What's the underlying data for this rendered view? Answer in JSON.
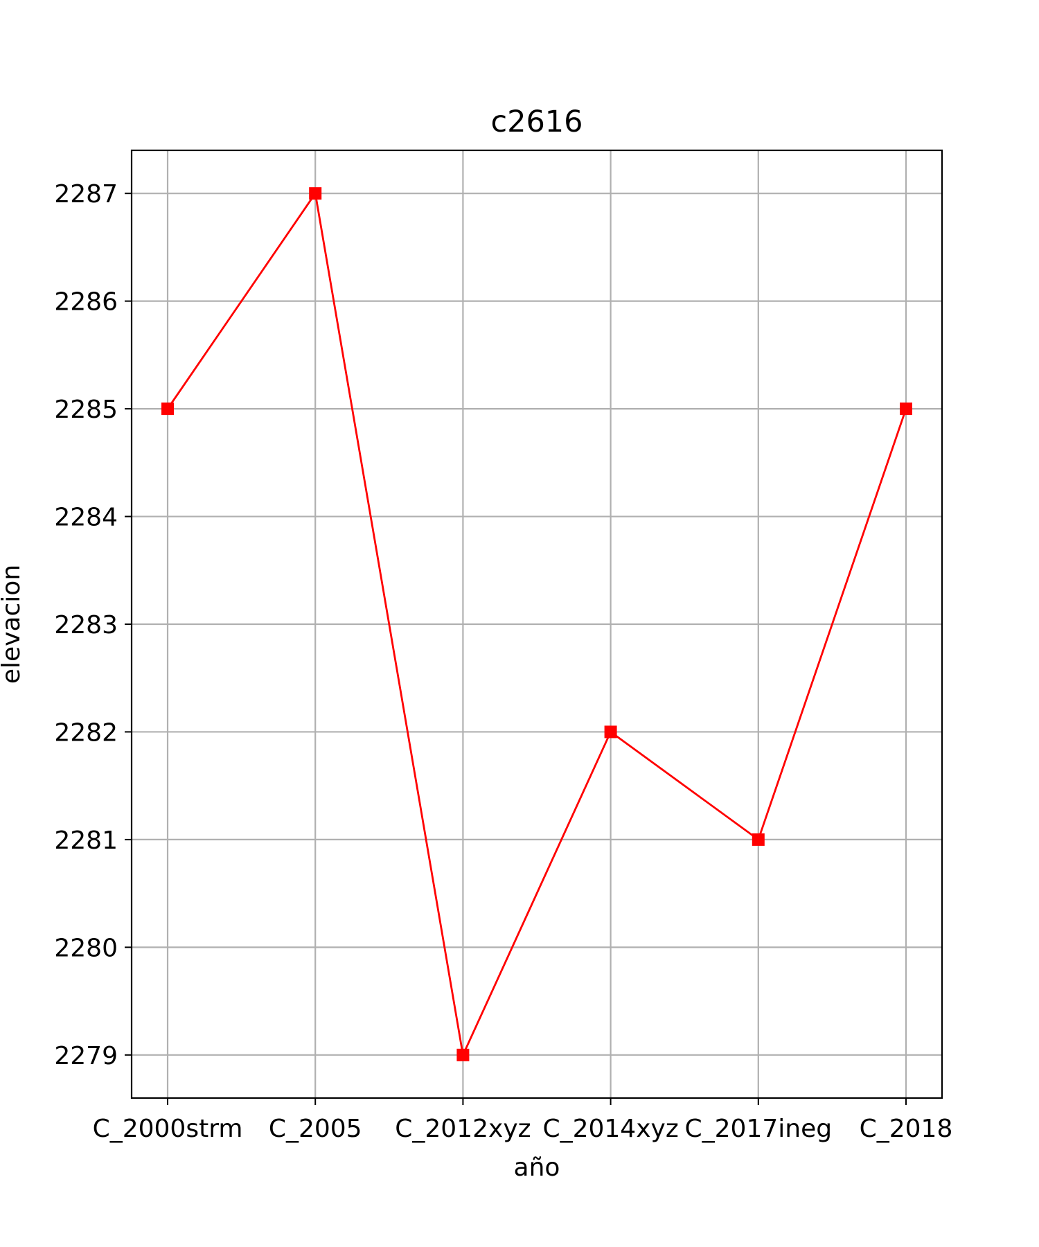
{
  "chart_data": {
    "type": "line",
    "title": "c2616",
    "xlabel": "año",
    "ylabel": "elevacion",
    "categories": [
      "C_2000strm",
      "C_2005",
      "C_2012xyz",
      "C_2014xyz",
      "C_2017ineg",
      "C_2018"
    ],
    "series": [
      {
        "values": [
          2285,
          2287,
          2279,
          2282,
          2281,
          2285
        ],
        "color": "#ff0000",
        "marker": "square"
      }
    ],
    "yticks": [
      2279,
      2280,
      2281,
      2282,
      2283,
      2284,
      2285,
      2286,
      2287
    ],
    "ylim": [
      2278.6,
      2287.4
    ],
    "grid": true,
    "legend": "none"
  }
}
